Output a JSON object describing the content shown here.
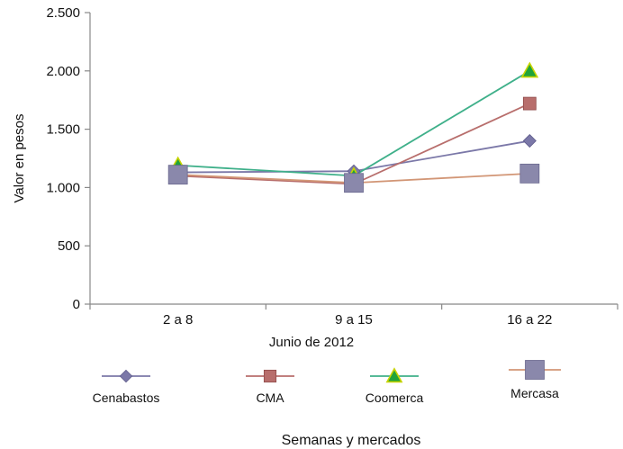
{
  "chart_data": {
    "type": "line",
    "categories": [
      "2 a 8",
      "9 a 15",
      "16 a 22"
    ],
    "xlabel": "Junio de 2012",
    "ylabel": "Valor en pesos",
    "ylim": [
      0,
      2500
    ],
    "yticks": [
      0,
      500,
      1000,
      1500,
      2000,
      2500
    ],
    "ytick_labels": [
      "0",
      "500",
      "1.000",
      "1.500",
      "2.000",
      "2.500"
    ],
    "grid": false,
    "legend_position": "bottom",
    "footer": "Semanas y mercados",
    "series": [
      {
        "name": "Cenabastos",
        "values": [
          1130,
          1140,
          1400
        ],
        "color": "#7b78a8",
        "marker": "diamond"
      },
      {
        "name": "CMA",
        "values": [
          1100,
          1030,
          1720
        ],
        "color": "#b86e6c",
        "marker": "square"
      },
      {
        "name": "Coomerca",
        "values": [
          1190,
          1100,
          2000
        ],
        "color": "#3fb08a",
        "marker": "triangle",
        "marker_fill": "#1fa33a",
        "marker_edge": "#c8d400"
      },
      {
        "name": "Mercasa",
        "values": [
          1110,
          1040,
          1120
        ],
        "color": "#d29676",
        "marker": "big-square",
        "marker_fill": "#8a88ab"
      }
    ]
  }
}
